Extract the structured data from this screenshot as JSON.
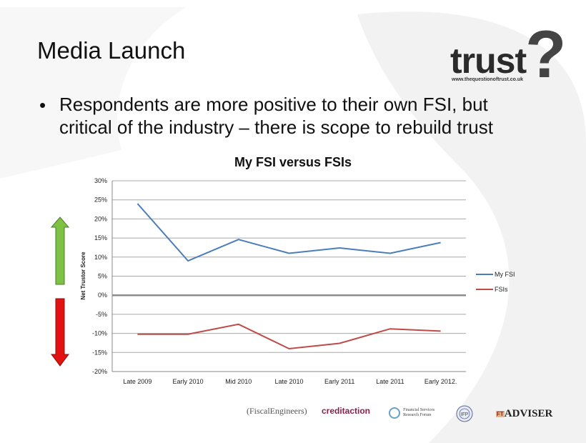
{
  "slide": {
    "title": "Media Launch",
    "logo": {
      "word": "trust",
      "mark": "?",
      "url": "www.thequestionoftrust.co.uk"
    },
    "bullet": "Respondents are more positive to their own FSI, but critical of the industry – there is scope to rebuild trust",
    "footer_logos": [
      {
        "text": "FiscalEngineers",
        "icon": "fiscal-engineers-logo"
      },
      {
        "text": "creditaction",
        "icon": "creditaction-logo"
      },
      {
        "text": "Financial Services Research Forum",
        "icon": "fsrf-logo"
      },
      {
        "text": "IFP",
        "icon": "ifp-seal-logo"
      },
      {
        "text": "ADVISER",
        "icon": "ft-adviser-logo"
      }
    ],
    "colors": {
      "my_fsi": "#4a7ebb",
      "fsis": "#be4b48",
      "up_arrow": "#7dc242",
      "down_arrow": "#e1120f"
    }
  },
  "chart_data": {
    "type": "line",
    "title": "My FSI versus FSIs",
    "ylabel": "Net Trustor Score",
    "xlabel": "",
    "categories": [
      "Late 2009",
      "Early 2010",
      "Mid 2010",
      "Late 2010",
      "Early 2011",
      "Late 2011",
      "Early 2012."
    ],
    "ylim": [
      -20,
      30
    ],
    "yticks": [
      30,
      25,
      20,
      15,
      10,
      5,
      0,
      -5,
      -10,
      -15,
      -20
    ],
    "ytick_labels": [
      "30%",
      "25%",
      "20%",
      "15%",
      "10%",
      "5%",
      "0%",
      "-5%",
      "-10%",
      "-15%",
      "-20%"
    ],
    "grid": true,
    "legend_position": "right",
    "series": [
      {
        "name": "My FSI",
        "values": [
          24,
          9,
          14.6,
          11,
          12.4,
          11,
          13.8
        ]
      },
      {
        "name": "FSIs",
        "values": [
          -10.2,
          -10.2,
          -7.6,
          -14,
          -12.6,
          -8.8,
          -9.4
        ]
      }
    ]
  }
}
